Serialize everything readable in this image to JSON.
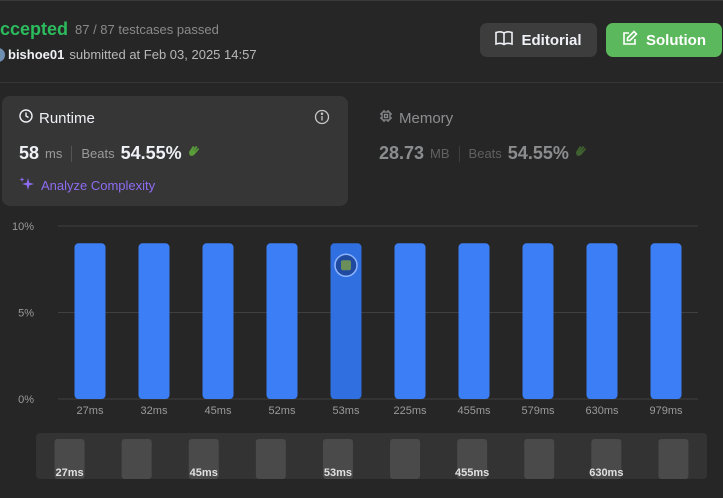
{
  "header": {
    "status": "ccepted",
    "testcases": "87 / 87 testcases passed",
    "username": "bishoe01",
    "submitted_at": "submitted at Feb 03, 2025 14:57"
  },
  "buttons": {
    "editorial": "Editorial",
    "solution": "Solution"
  },
  "runtime": {
    "title": "Runtime",
    "value": "58",
    "unit": "ms",
    "beats_label": "Beats",
    "beats_value": "54.55%",
    "analyze_label": "Analyze Complexity"
  },
  "memory": {
    "title": "Memory",
    "value": "28.73",
    "unit": "MB",
    "beats_label": "Beats",
    "beats_value": "54.55%"
  },
  "colors": {
    "accepted": "#2cbb5d",
    "bar": "#3c7ef5",
    "bar_selected": "#2f6fe0",
    "solution_button": "#5cb85c",
    "analyze": "#8e6cf2",
    "clap": "#5a9e3a"
  },
  "icons": {
    "runtime": "clock-icon",
    "memory": "chip-icon",
    "info": "info-icon",
    "editorial": "book-icon",
    "solution": "edit-icon",
    "analyze": "sparkle-icon",
    "clap": "clap-icon"
  },
  "chart_data": {
    "type": "bar",
    "categories": [
      "27ms",
      "32ms",
      "45ms",
      "52ms",
      "53ms",
      "225ms",
      "455ms",
      "579ms",
      "630ms",
      "979ms"
    ],
    "values": [
      9,
      9,
      9,
      9,
      9,
      9,
      9,
      9,
      9,
      9
    ],
    "y_ticks": [
      "0%",
      "5%",
      "10%"
    ],
    "ylim": [
      0,
      10
    ],
    "grid": true,
    "selected_index": 4,
    "overview_labels": [
      "27ms",
      "45ms",
      "53ms",
      "455ms",
      "630ms"
    ]
  }
}
